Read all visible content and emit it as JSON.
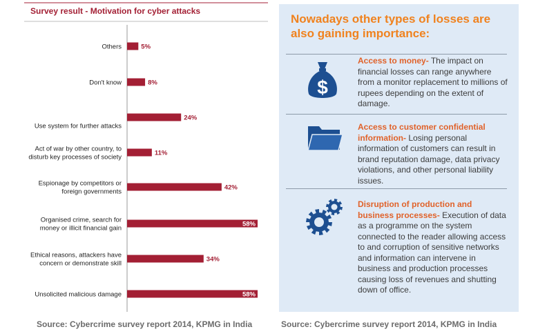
{
  "chart_data": {
    "type": "bar",
    "orientation": "horizontal",
    "title": "Survey result - Motivation for cyber attacks",
    "categories": [
      [
        "Others"
      ],
      [
        "Don't know"
      ],
      [
        "Use system for further attacks"
      ],
      [
        "Act of war by other country, to",
        "disturb key processes of society"
      ],
      [
        "Espionage by competitors or",
        "foreign governments"
      ],
      [
        "Organised crime, search for",
        "money or illicit financial gain"
      ],
      [
        "Ethical reasons, attackers have",
        "concern or demonstrate skill"
      ],
      [
        "Unsolicited malicious damage"
      ]
    ],
    "values": [
      5,
      8,
      24,
      11,
      42,
      58,
      34,
      58
    ],
    "value_labels": [
      "5%",
      "8%",
      "24%",
      "11%",
      "42%",
      "58%",
      "34%",
      "58%"
    ],
    "xlim": [
      0,
      58
    ],
    "bar_color": "#a31f34",
    "grid": false,
    "legend": "none"
  },
  "sources": {
    "left": "Source: Cybercrime survey report 2014, KPMG in India",
    "right": "Source: Cybercrime survey report 2014, KPMG in India"
  },
  "panel": {
    "title": "Nowadays other types of losses are also gaining importance:",
    "items": [
      {
        "icon": "money-bag-icon",
        "highlight": "Access to money-",
        "text": " The impact on financial losses can range anywhere from a monitor replacement to millions of rupees depending on the extent of damage."
      },
      {
        "icon": "folder-icon",
        "highlight": "Access to customer confidential information-",
        "text": " Losing personal information of customers can result in brand reputation damage, data privacy violations, and other personal liability issues."
      },
      {
        "icon": "gears-icon",
        "highlight": "Disruption of production and business processes-",
        "text": " Execution of data as a programme on the system connected to the reader allowing access to and corruption of sensitive networks and information can intervene in business and production processes causing loss of revenues and shutting down of office."
      }
    ]
  },
  "colors": {
    "accent": "#a31f34",
    "panel_bg": "#dfeaf6",
    "panel_title": "#f0821e",
    "highlight": "#e0622a",
    "icon": "#1d4f91"
  }
}
